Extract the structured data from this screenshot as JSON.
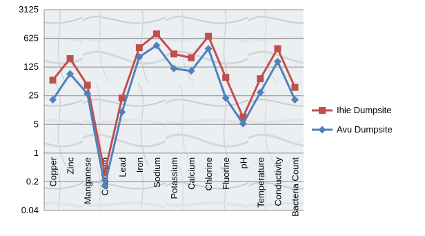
{
  "chart_data": {
    "type": "line",
    "title": "",
    "xlabel": "",
    "ylabel": "",
    "y_scale": "log5",
    "y_ticks": [
      "0.04",
      "0.2",
      "1",
      "5",
      "25",
      "125",
      "625",
      "3125"
    ],
    "ylim": [
      0.04,
      3125
    ],
    "grid": true,
    "legend_position": "right",
    "categories": [
      "Copper",
      "Zinc",
      "Manganese",
      "Cadmium",
      "Lead",
      "Iron",
      "Sodium",
      "Potassium",
      "Calcium",
      "Chlorine",
      "Fluorine",
      "pH",
      "Temperature",
      "Conductivity",
      "Bacteria Count"
    ],
    "series": [
      {
        "name": "Ihie Dumpsite",
        "color": "#c0504d",
        "marker": "square",
        "values": [
          60,
          200,
          45,
          0.33,
          22,
          370,
          800,
          260,
          210,
          700,
          70,
          7.5,
          65,
          350,
          40
        ]
      },
      {
        "name": "Avu Dumpsite",
        "color": "#4f81bd",
        "marker": "diamond",
        "values": [
          20,
          85,
          28,
          0.16,
          10,
          220,
          420,
          115,
          100,
          350,
          22,
          5.2,
          30,
          170,
          20
        ]
      }
    ]
  }
}
